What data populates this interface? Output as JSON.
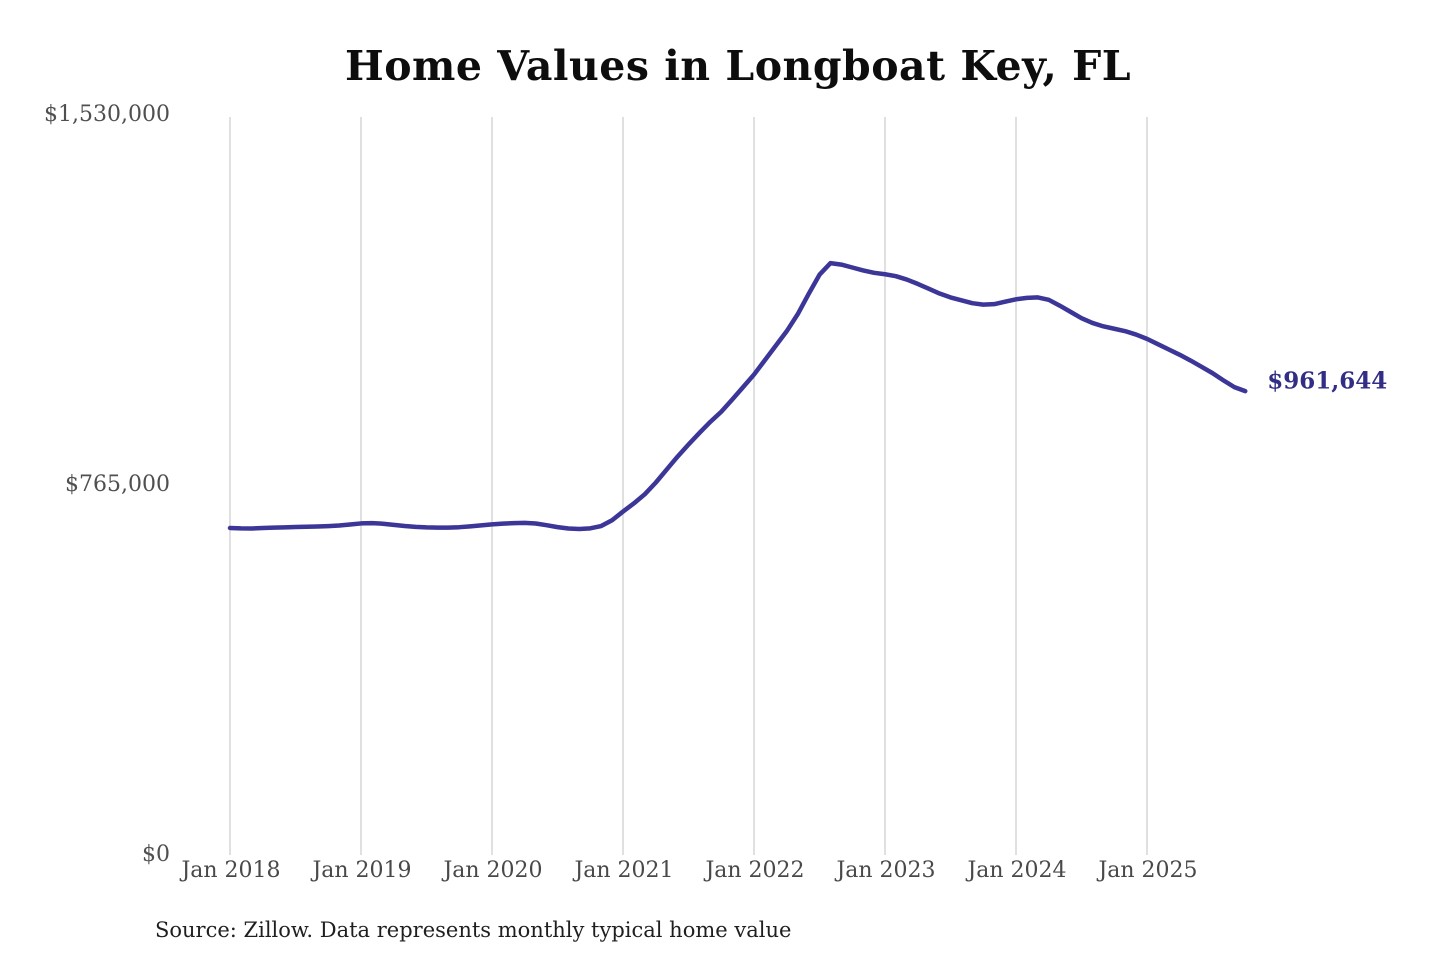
{
  "source_note": "Source: Zillow. Data represents monthly typical home value",
  "colors": {
    "line": "#3b3697",
    "end_label": "#322d85",
    "grid": "#cccccc",
    "title": "#0d0d0d",
    "tick": "#4f4f4f",
    "source": "#1f1f1f"
  },
  "chart_data": {
    "type": "line",
    "title": "Home Values in Longboat Key, FL",
    "xlabel": "",
    "ylabel": "",
    "ylim": [
      0,
      1530000
    ],
    "grid": "vertical-only",
    "legend": "none",
    "y_tick_labels": [
      "$1,530,000",
      "$765,000",
      "$0"
    ],
    "y_tick_values": [
      1530000,
      765000,
      0
    ],
    "x_tick_labels": [
      "Jan 2018",
      "Jan 2019",
      "Jan 2020",
      "Jan 2021",
      "Jan 2022",
      "Jan 2023",
      "Jan 2024",
      "Jan 2025"
    ],
    "x_axis": {
      "start_month": "2018-01",
      "step": "1 month",
      "count": 94,
      "end_month": "2025-10"
    },
    "end_value": 961644,
    "end_value_label": "$961,644",
    "series": [
      {
        "name": "Monthly typical home value",
        "values": [
          678000,
          677200,
          677000,
          677800,
          678600,
          679300,
          679900,
          680500,
          681000,
          681800,
          683000,
          685200,
          687400,
          688100,
          686800,
          684400,
          682000,
          680200,
          679100,
          678600,
          678700,
          679600,
          681200,
          683300,
          685400,
          686900,
          688100,
          688600,
          687200,
          683800,
          679800,
          676900,
          675800,
          677200,
          682000,
          694000,
          712000,
          729000,
          748000,
          772000,
          799000,
          826000,
          851000,
          875000,
          898000,
          919000,
          944000,
          970000,
          996000,
          1026000,
          1056000,
          1086000,
          1121000,
          1163000,
          1203000,
          1227000,
          1224000,
          1218000,
          1212000,
          1207000,
          1204000,
          1200000,
          1193000,
          1184000,
          1174000,
          1164000,
          1156000,
          1150000,
          1144000,
          1141000,
          1142000,
          1147000,
          1152000,
          1155000,
          1156000,
          1151000,
          1139000,
          1126000,
          1113000,
          1103000,
          1096000,
          1091000,
          1086000,
          1079000,
          1070000,
          1059000,
          1048000,
          1037000,
          1025000,
          1012000,
          999000,
          984000,
          970000,
          961644
        ]
      }
    ]
  }
}
